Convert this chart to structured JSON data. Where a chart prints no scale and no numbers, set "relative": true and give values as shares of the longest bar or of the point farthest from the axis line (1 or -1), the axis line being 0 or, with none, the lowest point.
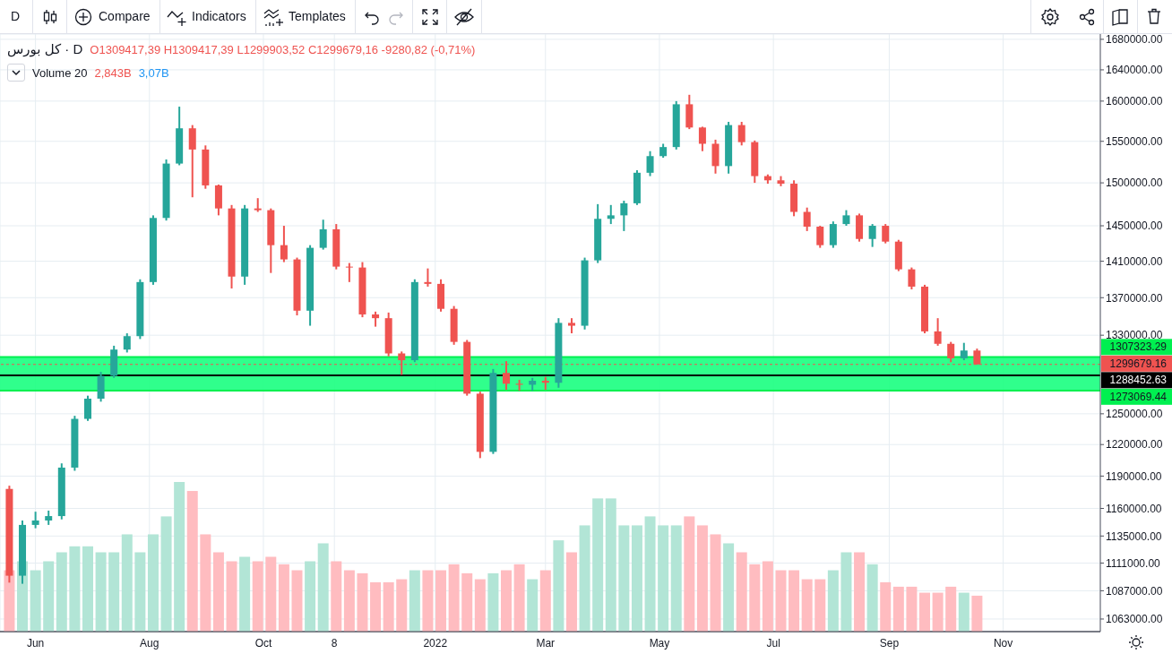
{
  "chart_data": [
    {
      "type": "candlestick",
      "title": "كل بورس · D",
      "annotations": [
        "D",
        "Compare",
        "Indicators",
        "Templates",
        "O1309417,39 H1309417,39 L1299903,52 C1299679,16 -9280,82 (-0,71%)",
        "Volume 20",
        "2,843B",
        "3,07B"
      ],
      "x": [
        "2021-05-18",
        "2021-05-25",
        "2021-06-01",
        "2021-06-08",
        "2021-06-15",
        "2021-06-22",
        "2021-06-29",
        "2021-07-06",
        "2021-07-13",
        "2021-07-20",
        "2021-07-27",
        "2021-08-03",
        "2021-08-10",
        "2021-08-17",
        "2021-08-24",
        "2021-08-31",
        "2021-09-07",
        "2021-09-14",
        "2021-09-21",
        "2021-09-28",
        "2021-10-05",
        "2021-10-12",
        "2021-10-19",
        "2021-10-26",
        "2021-11-02",
        "2021-11-09",
        "2021-11-16",
        "2021-11-23",
        "2021-11-30",
        "2021-12-07",
        "2021-12-14",
        "2021-12-21",
        "2021-12-28",
        "2022-01-04",
        "2022-01-11",
        "2022-01-18",
        "2022-01-25",
        "2022-02-01",
        "2022-02-08",
        "2022-02-15",
        "2022-02-22",
        "2022-03-01",
        "2022-03-08",
        "2022-03-15",
        "2022-03-22",
        "2022-03-29",
        "2022-04-05",
        "2022-04-12",
        "2022-04-19",
        "2022-04-26",
        "2022-05-03",
        "2022-05-10",
        "2022-05-17",
        "2022-05-24",
        "2022-05-31",
        "2022-06-07",
        "2022-06-14",
        "2022-06-21",
        "2022-06-28",
        "2022-07-05",
        "2022-07-12",
        "2022-07-19",
        "2022-07-26",
        "2022-08-02",
        "2022-08-09",
        "2022-08-16",
        "2022-08-23",
        "2022-08-30",
        "2022-09-06",
        "2022-09-13",
        "2022-09-20",
        "2022-09-27",
        "2022-10-04",
        "2022-10-11",
        "2022-10-18"
      ],
      "ohlc": [
        [
          1178000,
          1181000,
          1094000,
          1100000
        ],
        [
          1100000,
          1149000,
          1093000,
          1145000
        ],
        [
          1145000,
          1157000,
          1142000,
          1149000
        ],
        [
          1149000,
          1158000,
          1145000,
          1153000
        ],
        [
          1153000,
          1202000,
          1150000,
          1198000
        ],
        [
          1198000,
          1248000,
          1195000,
          1245000
        ],
        [
          1245000,
          1268000,
          1243000,
          1265000
        ],
        [
          1265000,
          1292000,
          1262000,
          1288000
        ],
        [
          1288000,
          1319000,
          1286000,
          1315000
        ],
        [
          1315000,
          1332000,
          1312000,
          1329000
        ],
        [
          1329000,
          1390000,
          1326000,
          1387000
        ],
        [
          1387000,
          1462000,
          1384000,
          1459000
        ],
        [
          1459000,
          1528000,
          1456000,
          1523000
        ],
        [
          1523000,
          1593000,
          1521000,
          1566000
        ],
        [
          1566000,
          1570000,
          1483000,
          1540000
        ],
        [
          1540000,
          1545000,
          1493000,
          1497000
        ],
        [
          1497000,
          1498000,
          1462000,
          1470000
        ],
        [
          1470000,
          1474000,
          1380000,
          1393000
        ],
        [
          1393000,
          1474000,
          1384000,
          1470000
        ],
        [
          1470000,
          1482000,
          1466000,
          1468000
        ],
        [
          1468000,
          1470000,
          1397000,
          1428000
        ],
        [
          1428000,
          1450000,
          1409000,
          1412000
        ],
        [
          1412000,
          1414000,
          1351000,
          1356000
        ],
        [
          1356000,
          1428000,
          1340000,
          1425000
        ],
        [
          1425000,
          1457000,
          1423000,
          1446000
        ],
        [
          1446000,
          1452000,
          1401000,
          1404000
        ],
        [
          1404000,
          1408000,
          1387000,
          1403000
        ],
        [
          1403000,
          1409000,
          1349000,
          1352000
        ],
        [
          1352000,
          1355000,
          1339000,
          1348000
        ],
        [
          1348000,
          1354000,
          1308000,
          1311000
        ],
        [
          1311000,
          1313000,
          1289000,
          1304000
        ],
        [
          1304000,
          1390000,
          1302000,
          1387000
        ],
        [
          1387000,
          1402000,
          1382000,
          1385000
        ],
        [
          1385000,
          1390000,
          1355000,
          1358000
        ],
        [
          1358000,
          1361000,
          1320000,
          1323000
        ],
        [
          1323000,
          1325000,
          1268000,
          1270000
        ],
        [
          1270000,
          1272000,
          1207000,
          1213000
        ],
        [
          1213000,
          1295000,
          1211000,
          1291000
        ],
        [
          1291000,
          1303000,
          1274000,
          1280000
        ],
        [
          1280000,
          1284000,
          1273000,
          1279000
        ],
        [
          1279000,
          1286000,
          1273000,
          1283000
        ],
        [
          1283000,
          1287000,
          1274000,
          1281000
        ],
        [
          1281000,
          1348000,
          1276000,
          1343000
        ],
        [
          1343000,
          1348000,
          1332000,
          1340000
        ],
        [
          1340000,
          1414000,
          1336000,
          1411000
        ],
        [
          1411000,
          1475000,
          1408000,
          1458000
        ],
        [
          1458000,
          1474000,
          1452000,
          1462000
        ],
        [
          1462000,
          1479000,
          1444000,
          1476000
        ],
        [
          1476000,
          1515000,
          1474000,
          1512000
        ],
        [
          1512000,
          1538000,
          1508000,
          1532000
        ],
        [
          1532000,
          1547000,
          1530000,
          1543000
        ],
        [
          1543000,
          1600000,
          1540000,
          1596000
        ],
        [
          1596000,
          1608000,
          1565000,
          1567000
        ],
        [
          1567000,
          1568000,
          1538000,
          1547000
        ],
        [
          1547000,
          1552000,
          1511000,
          1520000
        ],
        [
          1520000,
          1574000,
          1511000,
          1570000
        ],
        [
          1570000,
          1574000,
          1545000,
          1549000
        ],
        [
          1549000,
          1551000,
          1500000,
          1508000
        ],
        [
          1508000,
          1510000,
          1499000,
          1503000
        ],
        [
          1503000,
          1508000,
          1496000,
          1499000
        ],
        [
          1499000,
          1503000,
          1461000,
          1466000
        ],
        [
          1466000,
          1471000,
          1444000,
          1449000
        ],
        [
          1449000,
          1450000,
          1425000,
          1428000
        ],
        [
          1428000,
          1455000,
          1425000,
          1452000
        ],
        [
          1452000,
          1468000,
          1450000,
          1462000
        ],
        [
          1462000,
          1464000,
          1432000,
          1435000
        ],
        [
          1435000,
          1452000,
          1426000,
          1450000
        ],
        [
          1450000,
          1452000,
          1430000,
          1432000
        ],
        [
          1432000,
          1434000,
          1399000,
          1401000
        ],
        [
          1401000,
          1403000,
          1379000,
          1382000
        ],
        [
          1382000,
          1384000,
          1332000,
          1334000
        ],
        [
          1334000,
          1348000,
          1319000,
          1321000
        ],
        [
          1321000,
          1323000,
          1302000,
          1306000
        ],
        [
          1306000,
          1322000,
          1304000,
          1314000
        ],
        [
          1314000,
          1316000,
          1299679.16,
          1299679.16
        ]
      ],
      "colors": [
        "#ef5350",
        "#26a69a",
        "#26a69a",
        "#26a69a",
        "#26a69a",
        "#26a69a",
        "#26a69a",
        "#26a69a",
        "#26a69a",
        "#26a69a",
        "#26a69a",
        "#26a69a",
        "#26a69a",
        "#26a69a",
        "#ef5350",
        "#ef5350",
        "#ef5350",
        "#ef5350",
        "#26a69a",
        "#ef5350",
        "#ef5350",
        "#ef5350",
        "#ef5350",
        "#26a69a",
        "#26a69a",
        "#ef5350",
        "#ef5350",
        "#ef5350",
        "#ef5350",
        "#ef5350",
        "#ef5350",
        "#26a69a",
        "#ef5350",
        "#ef5350",
        "#ef5350",
        "#ef5350",
        "#ef5350",
        "#26a69a",
        "#ef5350",
        "#ef5350",
        "#26a69a",
        "#ef5350",
        "#26a69a",
        "#ef5350",
        "#26a69a",
        "#26a69a",
        "#26a69a",
        "#26a69a",
        "#26a69a",
        "#26a69a",
        "#26a69a",
        "#26a69a",
        "#ef5350",
        "#ef5350",
        "#ef5350",
        "#26a69a",
        "#ef5350",
        "#ef5350",
        "#ef5350",
        "#ef5350",
        "#ef5350",
        "#ef5350",
        "#ef5350",
        "#26a69a",
        "#26a69a",
        "#ef5350",
        "#26a69a",
        "#ef5350",
        "#ef5350",
        "#ef5350",
        "#ef5350",
        "#ef5350",
        "#ef5350",
        "#26a69a",
        "#ef5350"
      ],
      "log": true,
      "xlim": [
        "2021-05-13",
        "2022-12-23"
      ],
      "xticks": [
        {
          "value": "2021-06-01",
          "label": "Jun"
        },
        {
          "value": "2021-08-01",
          "label": "Aug"
        },
        {
          "value": "2021-10-01",
          "label": "Oct"
        },
        {
          "value": "2021-11-08",
          "label": "8"
        },
        {
          "value": "2022-01-01",
          "label": "2022"
        },
        {
          "value": "2022-03-01",
          "label": "Mar"
        },
        {
          "value": "2022-05-01",
          "label": "May"
        },
        {
          "value": "2022-07-01",
          "label": "Jul"
        },
        {
          "value": "2022-09-01",
          "label": "Sep"
        },
        {
          "value": "2022-11-01",
          "label": "Nov"
        }
      ],
      "ylim": [
        1052500,
        1687000
      ],
      "yticks": [
        {
          "value": 1680000,
          "label": "1680000.00"
        },
        {
          "value": 1640000,
          "label": "1640000.00"
        },
        {
          "value": 1600000,
          "label": "1600000.00"
        },
        {
          "value": 1550000,
          "label": "1550000.00"
        },
        {
          "value": 1500000,
          "label": "1500000.00"
        },
        {
          "value": 1450000,
          "label": "1450000.00"
        },
        {
          "value": 1410000,
          "label": "1410000.00"
        },
        {
          "value": 1370000,
          "label": "1370000.00"
        },
        {
          "value": 1330000,
          "label": "1330000.00"
        },
        {
          "value": 1250000,
          "label": "1250000.00"
        },
        {
          "value": 1220000,
          "label": "1220000.00"
        },
        {
          "value": 1190000,
          "label": "1190000.00"
        },
        {
          "value": 1160000,
          "label": "1160000.00"
        },
        {
          "value": 1135000,
          "label": "1135000.00"
        },
        {
          "value": 1111000,
          "label": "1111000.00"
        },
        {
          "value": 1087000,
          "label": "1087000.00"
        },
        {
          "value": 1063000,
          "label": "1063000.00"
        }
      ],
      "grid": true,
      "bands": [
        {
          "axis": "y",
          "from": 1273069.44,
          "to": 1307323.29,
          "color": "#1aff80"
        }
      ],
      "ref_lines": [
        {
          "axis": "y",
          "value": 1307323.29,
          "label": "1307323.29",
          "color": "#00f050"
        },
        {
          "axis": "y",
          "value": 1273069.44,
          "label": "1273069.44",
          "color": "#00f050"
        },
        {
          "axis": "y",
          "value": 1288452.63,
          "label": "1288452.63",
          "color": "#000000"
        },
        {
          "axis": "y",
          "value": 1299679.16,
          "label": "1299679.16",
          "color": "#ef5350",
          "line_style": "dashed"
        }
      ]
    },
    {
      "type": "bar",
      "relative": true,
      "xlim": [
        "2021-05-13",
        "2022-12-23"
      ],
      "x": [
        "2021-05-18",
        "2021-05-25",
        "2021-06-01",
        "2021-06-08",
        "2021-06-15",
        "2021-06-22",
        "2021-06-29",
        "2021-07-06",
        "2021-07-13",
        "2021-07-20",
        "2021-07-27",
        "2021-08-03",
        "2021-08-10",
        "2021-08-17",
        "2021-08-24",
        "2021-08-31",
        "2021-09-07",
        "2021-09-14",
        "2021-09-21",
        "2021-09-28",
        "2021-10-05",
        "2021-10-12",
        "2021-10-19",
        "2021-10-26",
        "2021-11-02",
        "2021-11-09",
        "2021-11-16",
        "2021-11-23",
        "2021-11-30",
        "2021-12-07",
        "2021-12-14",
        "2021-12-21",
        "2021-12-28",
        "2022-01-04",
        "2022-01-11",
        "2022-01-18",
        "2022-01-25",
        "2022-02-01",
        "2022-02-08",
        "2022-02-15",
        "2022-02-22",
        "2022-03-01",
        "2022-03-08",
        "2022-03-15",
        "2022-03-22",
        "2022-03-29",
        "2022-04-05",
        "2022-04-12",
        "2022-04-19",
        "2022-04-26",
        "2022-05-03",
        "2022-05-10",
        "2022-05-17",
        "2022-05-24",
        "2022-05-31",
        "2022-06-07",
        "2022-06-14",
        "2022-06-21",
        "2022-06-28",
        "2022-07-05",
        "2022-07-12",
        "2022-07-19",
        "2022-07-26",
        "2022-08-02",
        "2022-08-09",
        "2022-08-16",
        "2022-08-23",
        "2022-08-30",
        "2022-09-06",
        "2022-09-13",
        "2022-09-20",
        "2022-09-27",
        "2022-10-04",
        "2022-10-11",
        "2022-10-18"
      ],
      "values": [
        0.41,
        0.47,
        0.41,
        0.47,
        0.53,
        0.57,
        0.57,
        0.53,
        0.53,
        0.65,
        0.53,
        0.65,
        0.77,
        1,
        0.94,
        0.65,
        0.53,
        0.47,
        0.5,
        0.47,
        0.5,
        0.45,
        0.41,
        0.47,
        0.59,
        0.47,
        0.41,
        0.39,
        0.33,
        0.33,
        0.35,
        0.41,
        0.41,
        0.41,
        0.45,
        0.39,
        0.35,
        0.39,
        0.41,
        0.45,
        0.35,
        0.41,
        0.61,
        0.53,
        0.71,
        0.89,
        0.89,
        0.71,
        0.71,
        0.77,
        0.71,
        0.71,
        0.77,
        0.71,
        0.65,
        0.59,
        0.53,
        0.45,
        0.47,
        0.41,
        0.41,
        0.35,
        0.35,
        0.41,
        0.53,
        0.53,
        0.45,
        0.33,
        0.3,
        0.3,
        0.26,
        0.26,
        0.3,
        0.26,
        0.24
      ],
      "colors": [
        "#ffbcc0",
        "#b2e5d6",
        "#b2e5d6",
        "#b2e5d6",
        "#b2e5d6",
        "#b2e5d6",
        "#b2e5d6",
        "#b2e5d6",
        "#b2e5d6",
        "#b2e5d6",
        "#b2e5d6",
        "#b2e5d6",
        "#b2e5d6",
        "#b2e5d6",
        "#ffbcc0",
        "#ffbcc0",
        "#ffbcc0",
        "#ffbcc0",
        "#b2e5d6",
        "#ffbcc0",
        "#ffbcc0",
        "#ffbcc0",
        "#ffbcc0",
        "#b2e5d6",
        "#b2e5d6",
        "#ffbcc0",
        "#ffbcc0",
        "#ffbcc0",
        "#ffbcc0",
        "#ffbcc0",
        "#ffbcc0",
        "#b2e5d6",
        "#ffbcc0",
        "#ffbcc0",
        "#ffbcc0",
        "#ffbcc0",
        "#ffbcc0",
        "#b2e5d6",
        "#ffbcc0",
        "#ffbcc0",
        "#b2e5d6",
        "#ffbcc0",
        "#b2e5d6",
        "#ffbcc0",
        "#b2e5d6",
        "#b2e5d6",
        "#b2e5d6",
        "#b2e5d6",
        "#b2e5d6",
        "#b2e5d6",
        "#b2e5d6",
        "#b2e5d6",
        "#ffbcc0",
        "#ffbcc0",
        "#ffbcc0",
        "#b2e5d6",
        "#ffbcc0",
        "#ffbcc0",
        "#ffbcc0",
        "#ffbcc0",
        "#ffbcc0",
        "#ffbcc0",
        "#ffbcc0",
        "#b2e5d6",
        "#b2e5d6",
        "#ffbcc0",
        "#b2e5d6",
        "#ffbcc0",
        "#ffbcc0",
        "#ffbcc0",
        "#ffbcc0",
        "#ffbcc0",
        "#ffbcc0",
        "#b2e5d6",
        "#ffbcc0"
      ]
    }
  ]
}
